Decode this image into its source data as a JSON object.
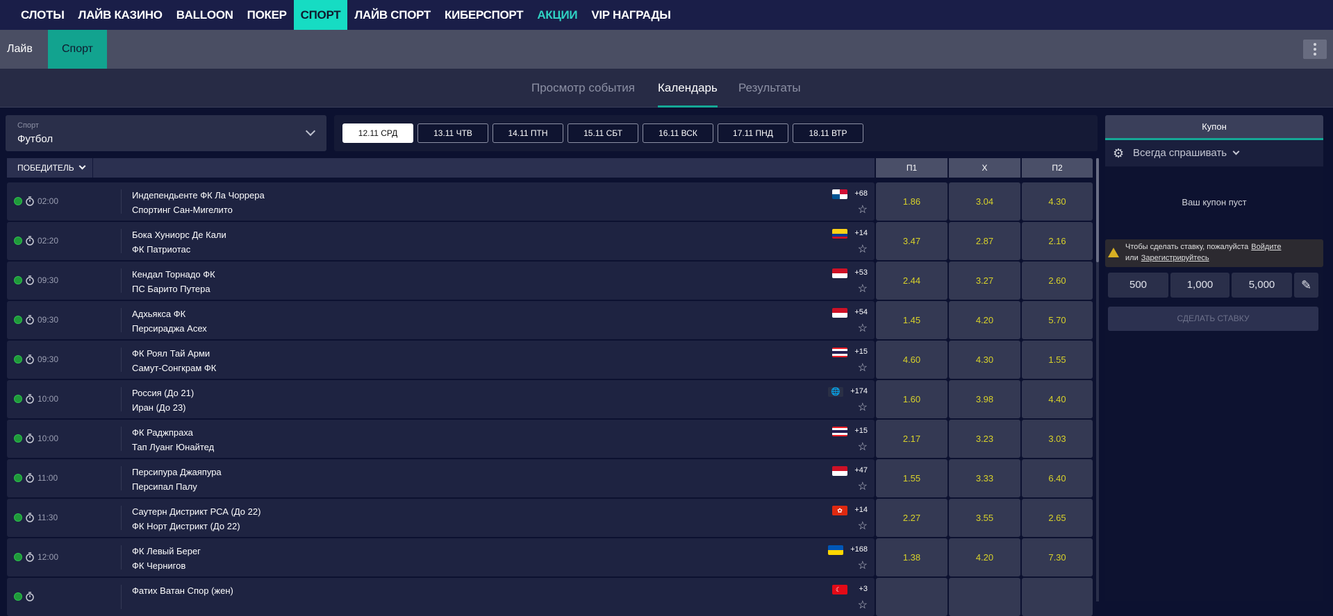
{
  "top_nav": [
    {
      "label": "СЛОТЫ",
      "state": "normal"
    },
    {
      "label": "ЛАЙВ КАЗИНО",
      "state": "normal"
    },
    {
      "label": "BALLOON",
      "state": "normal"
    },
    {
      "label": "ПОКЕР",
      "state": "normal"
    },
    {
      "label": "СПОРТ",
      "state": "active"
    },
    {
      "label": "ЛАЙВ СПОРТ",
      "state": "normal"
    },
    {
      "label": "КИБЕРСПОРТ",
      "state": "normal"
    },
    {
      "label": "АКЦИИ",
      "state": "promo"
    },
    {
      "label": "VIP НАГРАДЫ",
      "state": "normal"
    }
  ],
  "sub_nav": {
    "live": "Лайв",
    "sport": "Спорт",
    "menu_icon": "kebab-icon"
  },
  "view_tabs": [
    {
      "label": "Просмотр события",
      "active": false
    },
    {
      "label": "Календарь",
      "active": true
    },
    {
      "label": "Результаты",
      "active": false
    }
  ],
  "sport_select": {
    "label": "Спорт",
    "value": "Футбол"
  },
  "dates": [
    {
      "label": "12.11 СРД",
      "active": true
    },
    {
      "label": "13.11 ЧТВ",
      "active": false
    },
    {
      "label": "14.11 ПТН",
      "active": false
    },
    {
      "label": "15.11 СБТ",
      "active": false
    },
    {
      "label": "16.11 ВСК",
      "active": false
    },
    {
      "label": "17.11 ПНД",
      "active": false
    },
    {
      "label": "18.11 ВТР",
      "active": false
    }
  ],
  "market": {
    "label": "ПОБЕДИТЕЛЬ",
    "columns": [
      "П1",
      "X",
      "П2"
    ]
  },
  "events": [
    {
      "time": "02:00",
      "home": "Индепендьенте ФК Ла Чоррера",
      "away": "Спортинг Сан-Мигелито",
      "flag": "panama",
      "more": "+68",
      "odds": [
        "1.86",
        "3.04",
        "4.30"
      ]
    },
    {
      "time": "02:20",
      "home": "Бока Хуниорс Де Кали",
      "away": "ФК Патриотас",
      "flag": "colombia",
      "more": "+14",
      "odds": [
        "3.47",
        "2.87",
        "2.16"
      ]
    },
    {
      "time": "09:30",
      "home": "Кендал Торнадо ФК",
      "away": "ПС Барито Путера",
      "flag": "indonesia",
      "more": "+53",
      "odds": [
        "2.44",
        "3.27",
        "2.60"
      ]
    },
    {
      "time": "09:30",
      "home": "Адхьякса ФК",
      "away": "Персираджа Асех",
      "flag": "indonesia",
      "more": "+54",
      "odds": [
        "1.45",
        "4.20",
        "5.70"
      ]
    },
    {
      "time": "09:30",
      "home": "ФК Роял Тай Арми",
      "away": "Самут-Сонгкрам ФК",
      "flag": "thailand",
      "more": "+15",
      "odds": [
        "4.60",
        "4.30",
        "1.55"
      ]
    },
    {
      "time": "10:00",
      "home": "Россия (До 21)",
      "away": "Иран (До 23)",
      "flag": "world",
      "more": "+174",
      "odds": [
        "1.60",
        "3.98",
        "4.40"
      ]
    },
    {
      "time": "10:00",
      "home": "ФК Раджпраха",
      "away": "Тап Луанг Юнайтед",
      "flag": "thailand",
      "more": "+15",
      "odds": [
        "2.17",
        "3.23",
        "3.03"
      ]
    },
    {
      "time": "11:00",
      "home": "Персипура Джаяпура",
      "away": "Персипал Палу",
      "flag": "indonesia",
      "more": "+47",
      "odds": [
        "1.55",
        "3.33",
        "6.40"
      ]
    },
    {
      "time": "11:30",
      "home": "Саутерн Дистрикт РСА (До 22)",
      "away": "ФК Норт Дистрикт (До 22)",
      "flag": "hongkong",
      "more": "+14",
      "odds": [
        "2.27",
        "3.55",
        "2.65"
      ]
    },
    {
      "time": "12:00",
      "home": "ФК Левый Берег",
      "away": "ФК Чернигов",
      "flag": "ukraine",
      "more": "+168",
      "odds": [
        "1.38",
        "4.20",
        "7.30"
      ]
    },
    {
      "time": "",
      "home": "Фатих Ватан Спор (жен)",
      "away": "",
      "flag": "turkey",
      "more": "+3",
      "odds": [
        "",
        "",
        ""
      ]
    }
  ],
  "coupon": {
    "tab": "Купон",
    "mode": "Всегда спрашивать",
    "empty": "Ваш купон пуст",
    "warning_text": "Чтобы сделать ставку, пожалуйста",
    "login": "Войдите",
    "or": "или",
    "register": "Зарегистрируйтесь",
    "stakes": [
      "500",
      "1,000",
      "5,000"
    ],
    "place_bet": "СДЕЛАТЬ СТАВКУ"
  },
  "colors": {
    "accent": "#16dcc3",
    "odds": "#d8d22a",
    "promo": "#2fd2c3"
  }
}
